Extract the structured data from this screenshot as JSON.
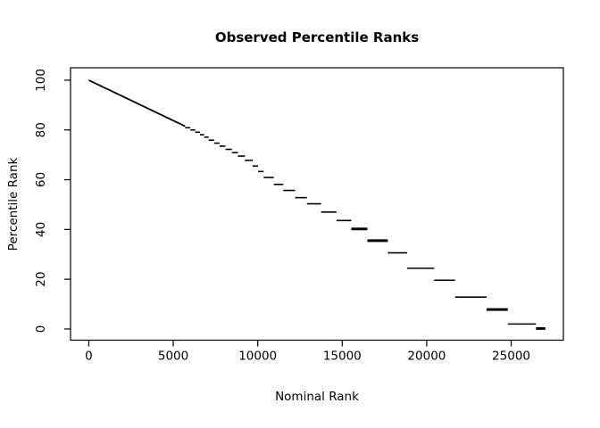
{
  "chart_data": {
    "type": "line",
    "style": "horizontal-step-segments",
    "title": "Observed Percentile Ranks",
    "xlabel": "Nominal Rank",
    "ylabel": "Percentile Rank",
    "x_ticks": [
      0,
      5000,
      10000,
      15000,
      20000,
      25000
    ],
    "x_tick_labels": [
      "0",
      "5000",
      "10000",
      "15000",
      "20000",
      "25000"
    ],
    "y_ticks": [
      0,
      20,
      40,
      60,
      80,
      100
    ],
    "y_tick_labels": [
      "0",
      "20",
      "40",
      "60",
      "80",
      "100"
    ],
    "xlim": [
      -1080,
      28090
    ],
    "ylim": [
      -4.5,
      105
    ],
    "grid": false,
    "legend": null,
    "line_color": "#000000",
    "box_color": "#000000",
    "leading_line": {
      "x1": 0,
      "y1": 100,
      "x2": 5700,
      "y2": 81.5
    },
    "segments": [
      {
        "x1": 5700,
        "x2": 6010,
        "y": 80.9
      },
      {
        "x1": 6010,
        "x2": 6300,
        "y": 80.0
      },
      {
        "x1": 6300,
        "x2": 6580,
        "y": 79.1
      },
      {
        "x1": 6580,
        "x2": 6830,
        "y": 78.1
      },
      {
        "x1": 6830,
        "x2": 7100,
        "y": 77.1
      },
      {
        "x1": 7100,
        "x2": 7420,
        "y": 75.9
      },
      {
        "x1": 7420,
        "x2": 7740,
        "y": 74.7
      },
      {
        "x1": 7740,
        "x2": 8090,
        "y": 73.5
      },
      {
        "x1": 8090,
        "x2": 8470,
        "y": 72.2
      },
      {
        "x1": 8470,
        "x2": 8820,
        "y": 70.9
      },
      {
        "x1": 8820,
        "x2": 9240,
        "y": 69.5
      },
      {
        "x1": 9240,
        "x2": 9700,
        "y": 67.8
      },
      {
        "x1": 9700,
        "x2": 10020,
        "y": 65.5
      },
      {
        "x1": 10020,
        "x2": 10350,
        "y": 63.3
      },
      {
        "x1": 10350,
        "x2": 10950,
        "y": 60.9
      },
      {
        "x1": 10950,
        "x2": 11510,
        "y": 58.1
      },
      {
        "x1": 11510,
        "x2": 12210,
        "y": 55.7
      },
      {
        "x1": 12210,
        "x2": 12910,
        "y": 52.8
      },
      {
        "x1": 12910,
        "x2": 13750,
        "y": 50.3
      },
      {
        "x1": 13750,
        "x2": 14660,
        "y": 47.0
      },
      {
        "x1": 14660,
        "x2": 15540,
        "y": 43.6
      },
      {
        "x1": 15540,
        "x2": 16490,
        "y": 40.2,
        "thick": true
      },
      {
        "x1": 16490,
        "x2": 17700,
        "y": 35.5,
        "thick": true
      },
      {
        "x1": 17700,
        "x2": 18840,
        "y": 30.6
      },
      {
        "x1": 18840,
        "x2": 20440,
        "y": 24.4
      },
      {
        "x1": 20440,
        "x2": 21680,
        "y": 19.6
      },
      {
        "x1": 21680,
        "x2": 23540,
        "y": 12.8
      },
      {
        "x1": 23540,
        "x2": 24800,
        "y": 7.8,
        "thick": true
      },
      {
        "x1": 24800,
        "x2": 26470,
        "y": 2.0
      },
      {
        "x1": 26470,
        "x2": 27020,
        "y": 0.2,
        "thick": true
      }
    ]
  }
}
